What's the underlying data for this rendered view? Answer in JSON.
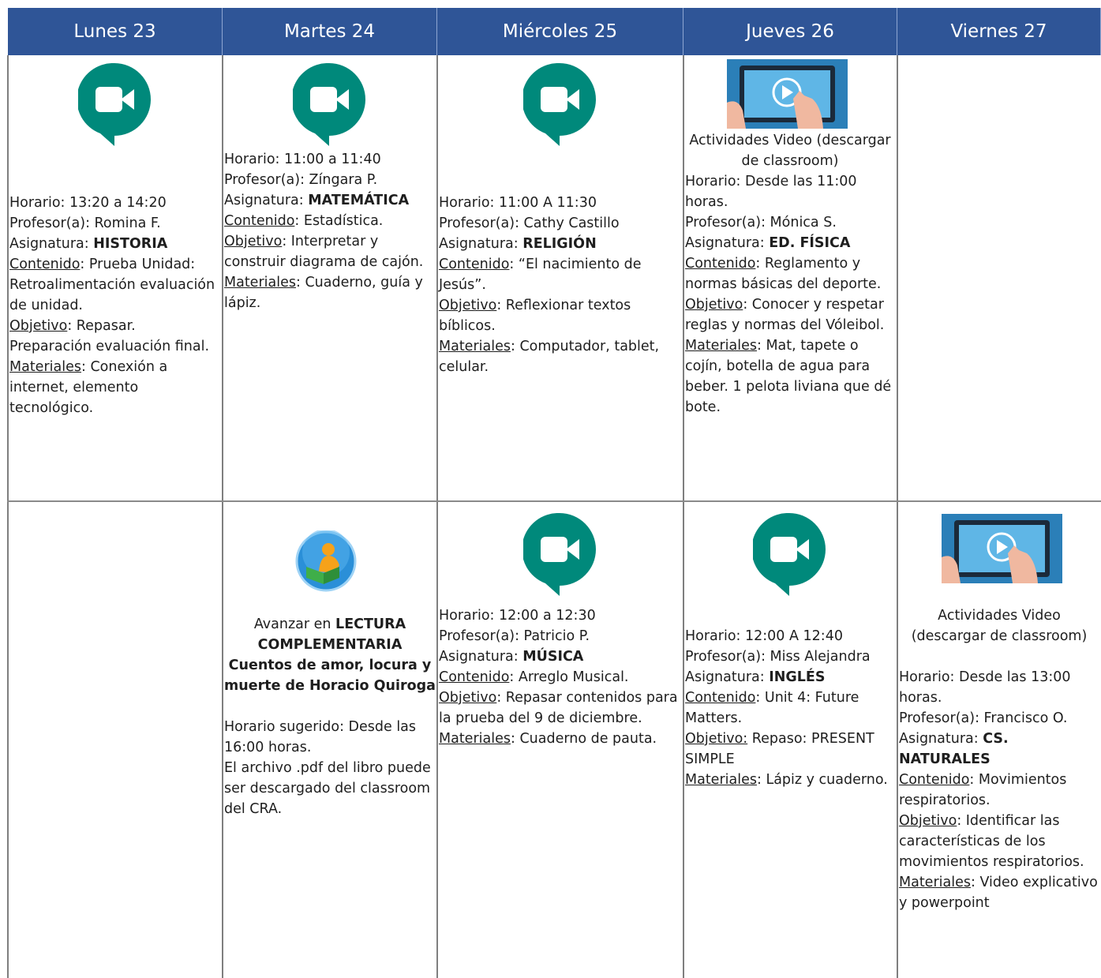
{
  "header": {
    "days": [
      "Lunes 23",
      "Martes 24",
      "Miércoles 25",
      "Jueves 26",
      "Viernes 27"
    ]
  },
  "rows": [
    [
      [
        [
          "Horario: 13:20 a 14:20"
        ],
        [
          "Profesor(a): Romina F."
        ],
        [
          "Asignatura: ",
          {
            "text": "HISTORIA",
            "style": "b"
          }
        ],
        [
          {
            "text": "Contenido",
            "style": "u"
          },
          ": Prueba Unidad: Retroalimentación evaluación de unidad."
        ],
        [
          {
            "text": "Objetivo",
            "style": "u"
          },
          ": Repasar."
        ],
        [
          "Preparación evaluación final."
        ],
        [
          {
            "text": "Materiales",
            "style": "u"
          },
          ": Conexión a internet, elemento tecnológico."
        ]
      ],
      [
        [
          "Horario: 11:00 a 11:40"
        ],
        [
          "Profesor(a): Zíngara P."
        ],
        [
          "Asignatura: ",
          {
            "text": "MATEMÁTICA",
            "style": "b"
          }
        ],
        [
          {
            "text": "Contenido",
            "style": "u"
          },
          ": Estadística."
        ],
        [
          {
            "text": "Objetivo",
            "style": "u"
          },
          ": Interpretar y construir diagrama de cajón."
        ],
        [
          {
            "text": "Materiales",
            "style": "u"
          },
          ": Cuaderno, guía y lápiz."
        ]
      ],
      [
        [
          "Horario: 11:00 A 11:30"
        ],
        [
          "Profesor(a): Cathy Castillo"
        ],
        [
          "Asignatura: ",
          {
            "text": "RELIGIÓN",
            "style": "b"
          }
        ],
        [
          {
            "text": "Contenido",
            "style": "u"
          },
          ": “El nacimiento de Jesús”."
        ],
        [
          {
            "text": "Objetivo",
            "style": "u"
          },
          ": Reflexionar textos bíblicos."
        ],
        [
          {
            "text": "Materiales",
            "style": "u"
          },
          ": Computador, tablet, celular."
        ]
      ],
      [
        {
          "align": "center",
          "spans": [
            "Actividades Video (descargar de classroom)"
          ]
        },
        [
          "Horario: Desde las 11:00 horas."
        ],
        [
          "Profesor(a): Mónica S."
        ],
        [
          "Asignatura: ",
          {
            "text": "ED. FÍSICA",
            "style": "b"
          }
        ],
        [
          {
            "text": "Contenido",
            "style": "u"
          },
          ": Reglamento y normas básicas del deporte."
        ],
        [
          {
            "text": "Objetivo",
            "style": "u"
          },
          ": Conocer y respetar reglas y normas del Vóleibol."
        ],
        [
          {
            "text": "Materiales",
            "style": "u"
          },
          ": Mat, tapete o cojín, botella de agua para beber. 1 pelota liviana que dé bote."
        ]
      ],
      []
    ],
    [
      [],
      [
        {
          "align": "center",
          "spans": [
            "Avanzar en ",
            {
              "text": "LECTURA COMPLEMENTARIA Cuentos de amor, locura y muerte de Horacio Quiroga",
              "style": "b"
            }
          ]
        },
        [
          "Horario sugerido: Desde las 16:00 horas."
        ],
        [
          "El archivo .pdf del libro puede ser descargado del classroom del CRA."
        ]
      ],
      [
        [
          "Horario: 12:00 a 12:30"
        ],
        [
          "Profesor(a): Patricio P."
        ],
        [
          "Asignatura: ",
          {
            "text": "MÚSICA",
            "style": "b"
          }
        ],
        [
          {
            "text": "Contenido",
            "style": "u"
          },
          ": Arreglo Musical."
        ],
        [
          {
            "text": "Objetivo",
            "style": "u"
          },
          ": Repasar contenidos para la prueba del 9 de diciembre."
        ],
        [
          {
            "text": "Materiales",
            "style": "u"
          },
          ": Cuaderno de pauta."
        ]
      ],
      [
        [
          "Horario: 12:00 A 12:40"
        ],
        [
          "Profesor(a): Miss Alejandra"
        ],
        [
          "Asignatura: ",
          {
            "text": "INGLÉS",
            "style": "b"
          }
        ],
        [
          {
            "text": "Contenido",
            "style": "u"
          },
          ": Unit 4: Future Matters."
        ],
        [
          {
            "text": "Objetivo:",
            "style": "u"
          },
          " Repaso: PRESENT SIMPLE"
        ],
        [
          {
            "text": "Materiales",
            "style": "u"
          },
          ": Lápiz y cuaderno."
        ]
      ],
      [
        {
          "align": "center",
          "spans": [
            "Actividades Video (descargar de classroom)"
          ]
        },
        [
          "Horario: Desde las 13:00 horas."
        ],
        [
          "Profesor(a): Francisco O."
        ],
        [
          "Asignatura: ",
          {
            "text": "CS. NATURALES",
            "style": "b"
          }
        ],
        [
          {
            "text": "Contenido",
            "style": "u"
          },
          ": Movimientos respiratorios."
        ],
        [
          {
            "text": "Objetivo",
            "style": "u"
          },
          ": Identificar las características de los movimientos respiratorios."
        ],
        [
          {
            "text": "Materiales",
            "style": "u"
          },
          ": Video explicativo y powerpoint"
        ]
      ]
    ]
  ]
}
